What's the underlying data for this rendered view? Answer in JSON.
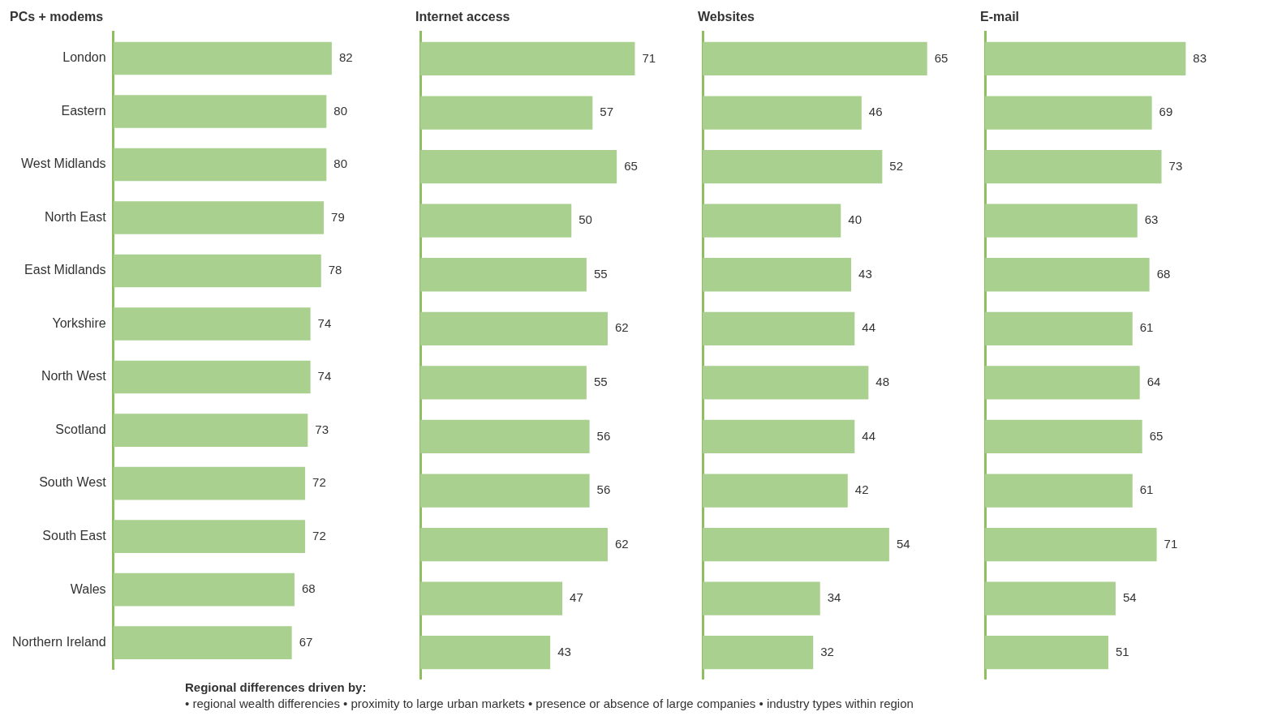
{
  "chart_data": [
    {
      "type": "bar",
      "orientation": "horizontal",
      "title": "PCs + modems",
      "categories": [
        "London",
        "Eastern",
        "West Midlands",
        "North East",
        "East Midlands",
        "Yorkshire",
        "North West",
        "Scotland",
        "South West",
        "South East",
        "Wales",
        "Northern Ireland"
      ],
      "values": [
        82,
        80,
        80,
        79,
        78,
        74,
        74,
        73,
        72,
        72,
        68,
        67
      ],
      "color": "#a9d08e",
      "data_labels": true,
      "grid": false,
      "legend": false,
      "tick_labels": "y",
      "annotations": [
        "Regional differences driven by:",
        "• regional wealth differencies • proximity to large urban markets • presence or absence of large companies • industry types within region"
      ]
    },
    {
      "type": "bar",
      "orientation": "horizontal",
      "title": "Internet access",
      "categories": [
        null,
        null,
        null,
        null,
        null,
        null,
        null,
        null,
        null,
        null,
        null,
        null
      ],
      "values": [
        71,
        57,
        65,
        50,
        55,
        62,
        55,
        56,
        56,
        62,
        47,
        43
      ],
      "color": "#a9d08e",
      "data_labels": true,
      "grid": false,
      "legend": false,
      "tick_labels": false
    },
    {
      "type": "bar",
      "orientation": "horizontal",
      "title": "Websites",
      "categories": [
        null,
        null,
        null,
        null,
        null,
        null,
        null,
        null,
        null,
        null,
        null,
        null
      ],
      "values": [
        65,
        46,
        52,
        40,
        43,
        44,
        48,
        44,
        42,
        54,
        34,
        32
      ],
      "color": "#a9d08e",
      "data_labels": true,
      "grid": false,
      "legend": false,
      "tick_labels": false
    },
    {
      "type": "bar",
      "orientation": "horizontal",
      "title": "E-mail",
      "categories": [
        null,
        null,
        null,
        null,
        null,
        null,
        null,
        null,
        null,
        null,
        null,
        null
      ],
      "values": [
        83,
        69,
        73,
        63,
        68,
        61,
        64,
        65,
        61,
        71,
        54,
        51
      ],
      "color": "#a9d08e",
      "data_labels": true,
      "grid": false,
      "legend": false,
      "tick_labels": false
    }
  ]
}
